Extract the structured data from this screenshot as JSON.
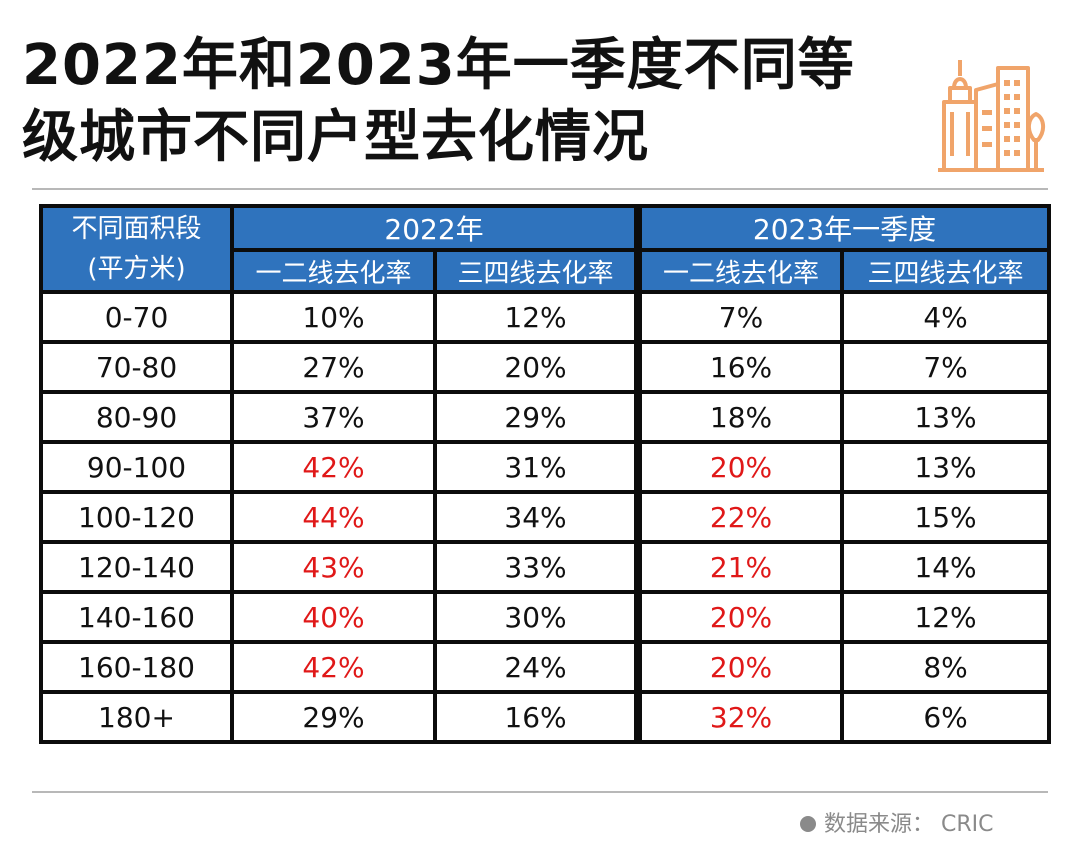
{
  "title": {
    "line1": "2022年和2023年一季度不同等",
    "line2": "级城市不同户型去化情况"
  },
  "logo": {
    "icon": "city-buildings-icon",
    "color": "#f0a46a"
  },
  "table": {
    "area_header": "不同面积段",
    "area_unit": "(平方米)",
    "groups": [
      "2022年",
      "2023年一季度"
    ],
    "subheaders": [
      "一二线去化率",
      "三四线去化率",
      "一二线去化率",
      "三四线去化率"
    ],
    "rows": [
      {
        "area": "0-70",
        "v": [
          "10%",
          "12%",
          "7%",
          "4%"
        ],
        "hl": [
          false,
          false,
          false,
          false
        ]
      },
      {
        "area": "70-80",
        "v": [
          "27%",
          "20%",
          "16%",
          "7%"
        ],
        "hl": [
          false,
          false,
          false,
          false
        ]
      },
      {
        "area": "80-90",
        "v": [
          "37%",
          "29%",
          "18%",
          "13%"
        ],
        "hl": [
          false,
          false,
          false,
          false
        ]
      },
      {
        "area": "90-100",
        "v": [
          "42%",
          "31%",
          "20%",
          "13%"
        ],
        "hl": [
          true,
          false,
          true,
          false
        ]
      },
      {
        "area": "100-120",
        "v": [
          "44%",
          "34%",
          "22%",
          "15%"
        ],
        "hl": [
          true,
          false,
          true,
          false
        ]
      },
      {
        "area": "120-140",
        "v": [
          "43%",
          "33%",
          "21%",
          "14%"
        ],
        "hl": [
          true,
          false,
          true,
          false
        ]
      },
      {
        "area": "140-160",
        "v": [
          "40%",
          "30%",
          "20%",
          "12%"
        ],
        "hl": [
          true,
          false,
          true,
          false
        ]
      },
      {
        "area": "160-180",
        "v": [
          "42%",
          "24%",
          "20%",
          "8%"
        ],
        "hl": [
          true,
          false,
          true,
          false
        ]
      },
      {
        "area": "180+",
        "v": [
          "29%",
          "16%",
          "32%",
          "6%"
        ],
        "hl": [
          false,
          false,
          true,
          false
        ]
      }
    ]
  },
  "colors": {
    "header_bg": "#2f73bd",
    "highlight": "#e01818",
    "border": "#0c0c0c"
  },
  "source": "数据来源：  CRIC"
}
